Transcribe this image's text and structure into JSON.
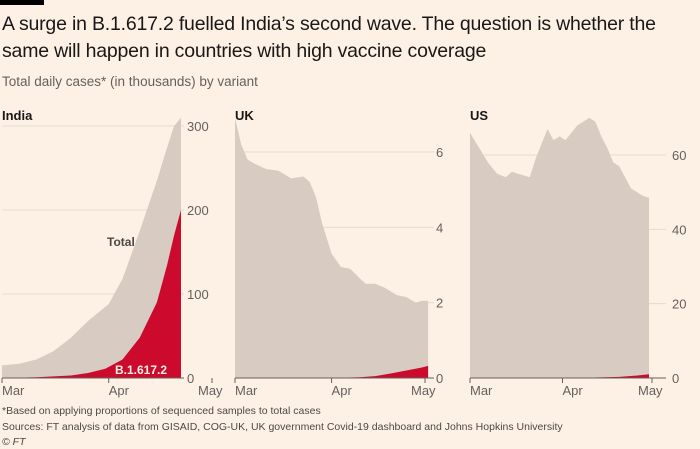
{
  "header": {
    "title": "A surge in B.1.617.2 fuelled India’s second wave. The question is whether the same will happen in countries with high vaccine coverage",
    "subtitle": "Total daily cases* (in thousands) by variant"
  },
  "footer": {
    "note": "*Based on applying proportions of sequenced samples to total cases",
    "sources": "Sources: FT analysis of data from GISAID, COG-UK, UK government Covid-19 dashboard and Johns Hopkins University",
    "copyright": "© FT"
  },
  "colors": {
    "total": "#d8cbc1",
    "variant": "#cc0a2d",
    "background": "#fdf1e5"
  },
  "chart_data": [
    {
      "type": "area",
      "title": "India",
      "ylabel": "Total daily cases (thousands)",
      "ylim": [
        0,
        300
      ],
      "yticks": [
        0,
        100,
        200,
        300
      ],
      "xticks": [
        "Mar",
        "Apr",
        "May"
      ],
      "x_days_range": [
        0,
        61
      ],
      "annotations": [
        "Total",
        "B.1.617.2"
      ],
      "series": [
        {
          "name": "Total",
          "x": [
            0,
            5,
            10,
            15,
            20,
            25,
            28,
            31,
            35,
            40,
            45,
            48,
            50,
            52
          ],
          "values": [
            15,
            17,
            22,
            32,
            48,
            68,
            78,
            88,
            118,
            175,
            235,
            275,
            300,
            310
          ]
        },
        {
          "name": "B.1.617.2",
          "x": [
            0,
            10,
            20,
            25,
            30,
            35,
            40,
            45,
            48,
            50,
            52
          ],
          "values": [
            0,
            1,
            3,
            6,
            11,
            22,
            48,
            90,
            135,
            170,
            200
          ]
        }
      ]
    },
    {
      "type": "area",
      "title": "UK",
      "ylim": [
        0,
        6.5
      ],
      "yticks": [
        0,
        2,
        4,
        6
      ],
      "xticks": [
        "Mar",
        "Apr",
        "May"
      ],
      "x_days_range": [
        0,
        61
      ],
      "series": [
        {
          "name": "Total",
          "x": [
            0,
            2,
            4,
            6,
            10,
            14,
            18,
            22,
            24,
            26,
            28,
            31,
            34,
            37,
            40,
            42,
            45,
            48,
            50,
            52,
            55,
            58,
            60,
            62
          ],
          "values": [
            6.9,
            6.2,
            5.8,
            5.7,
            5.55,
            5.5,
            5.3,
            5.35,
            5.2,
            4.8,
            4.1,
            3.3,
            2.95,
            2.9,
            2.65,
            2.5,
            2.5,
            2.4,
            2.3,
            2.2,
            2.15,
            2.0,
            2.05,
            2.05
          ]
        },
        {
          "name": "B.1.617.2",
          "x": [
            0,
            30,
            40,
            45,
            50,
            55,
            60,
            62
          ],
          "values": [
            0,
            0,
            0.02,
            0.05,
            0.12,
            0.2,
            0.28,
            0.32
          ]
        }
      ]
    },
    {
      "type": "area",
      "title": "US",
      "ylim": [
        0,
        70
      ],
      "yticks": [
        0,
        20,
        40,
        60
      ],
      "xticks": [
        "Mar",
        "Apr",
        "May"
      ],
      "x_days_range": [
        0,
        61
      ],
      "series": [
        {
          "name": "Total",
          "x": [
            0,
            3,
            6,
            9,
            12,
            14,
            16,
            18,
            20,
            22,
            24,
            26,
            28,
            30,
            32,
            34,
            36,
            38,
            40,
            42,
            44,
            46,
            48,
            50,
            52,
            54,
            56,
            58,
            60
          ],
          "values": [
            66,
            62,
            58,
            55,
            54,
            55.5,
            55,
            54.5,
            54,
            59,
            63,
            67,
            64,
            65,
            64,
            66,
            68,
            69,
            70,
            69,
            65,
            62,
            58,
            57,
            54,
            51,
            50,
            49,
            48.5
          ]
        },
        {
          "name": "B.1.617.2",
          "x": [
            0,
            30,
            40,
            50,
            55,
            60
          ],
          "values": [
            0,
            0,
            0.1,
            0.3,
            0.6,
            1.0
          ]
        }
      ]
    }
  ]
}
